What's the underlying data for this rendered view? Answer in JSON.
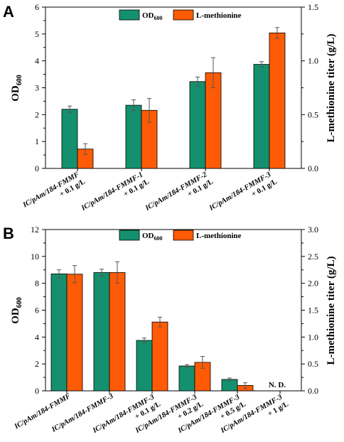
{
  "colors": {
    "od600": "#14906f",
    "methionine": "#ff5a05",
    "axis": "#000000",
    "errorbar": "#555555"
  },
  "chart_data": [
    {
      "panel": "A",
      "type": "bar",
      "legend": {
        "od_base": "OD",
        "od_sub": "600",
        "met": "L-methionine",
        "placement": "top-center"
      },
      "ylabel_left_base": "OD",
      "ylabel_left_sub": "600",
      "ylabel_right": "L-methionine titer (g/L)",
      "ylim_left": [
        0,
        6
      ],
      "ylim_right": [
        0,
        1.5
      ],
      "yticks_left": [
        "0",
        "1",
        "2",
        "3",
        "4",
        "5",
        "6"
      ],
      "yticks_right": [
        "0.0",
        "0.5",
        "1.0",
        "1.5"
      ],
      "categories": [
        {
          "strain": "IC/pAm/184-FMMF",
          "dose": "+ 0.1 g/L"
        },
        {
          "strain": "IC/pAm/184-FMMF-1",
          "dose": "+ 0.1 g/L"
        },
        {
          "strain": "IC/pAm/184-FMMF-2",
          "dose": "+ 0.1 g/L"
        },
        {
          "strain": "IC/pAm/184-FMMF-3",
          "dose": "+ 0.1 g/L"
        }
      ],
      "series": [
        {
          "name": "OD600",
          "axis": "left",
          "values": [
            2.2,
            2.35,
            3.23,
            3.87
          ],
          "errors": [
            0.12,
            0.2,
            0.17,
            0.1
          ]
        },
        {
          "name": "L-methionine",
          "axis": "right",
          "values": [
            0.18,
            0.54,
            0.89,
            1.26
          ],
          "errors": [
            0.05,
            0.11,
            0.14,
            0.05
          ]
        }
      ],
      "nd_label": ""
    },
    {
      "panel": "B",
      "type": "bar",
      "legend": {
        "od_base": "OD",
        "od_sub": "600",
        "met": "L-methionine",
        "placement": "top-center"
      },
      "ylabel_left_base": "OD",
      "ylabel_left_sub": "600",
      "ylabel_right": "L-methionine titer (g/L)",
      "ylim_left": [
        0,
        12
      ],
      "ylim_right": [
        0,
        3.0
      ],
      "yticks_left": [
        "0",
        "2",
        "4",
        "6",
        "8",
        "10",
        "12"
      ],
      "yticks_right": [
        "0.0",
        "0.5",
        "1.0",
        "1.5",
        "2.0",
        "2.5",
        "3.0"
      ],
      "categories": [
        {
          "strain": "IC/pAm/184-FMMF",
          "dose": ""
        },
        {
          "strain": "IC/pAm/184-FMMF-3",
          "dose": ""
        },
        {
          "strain": "IC/pAm/184-FMMF-3",
          "dose": "+ 0.1 g/L"
        },
        {
          "strain": "IC/pAm/184-FMMF-3",
          "dose": "+ 0.2 g/L"
        },
        {
          "strain": "IC/pAm/184-FMMF-3",
          "dose": "+ 0.5 g/L"
        },
        {
          "strain": "IC/pAm/184-FMMF-3",
          "dose": "+ 1 g/L"
        }
      ],
      "series": [
        {
          "name": "OD600",
          "axis": "left",
          "values": [
            8.7,
            8.8,
            3.75,
            1.85,
            0.85,
            0
          ],
          "errors": [
            0.3,
            0.25,
            0.18,
            0.1,
            0.1,
            0
          ]
        },
        {
          "name": "L-methionine",
          "axis": "right",
          "values": [
            2.17,
            2.2,
            1.28,
            0.53,
            0.1,
            0
          ],
          "errors": [
            0.16,
            0.2,
            0.09,
            0.11,
            0.05,
            0
          ]
        }
      ],
      "nd_label": "N. D."
    }
  ]
}
